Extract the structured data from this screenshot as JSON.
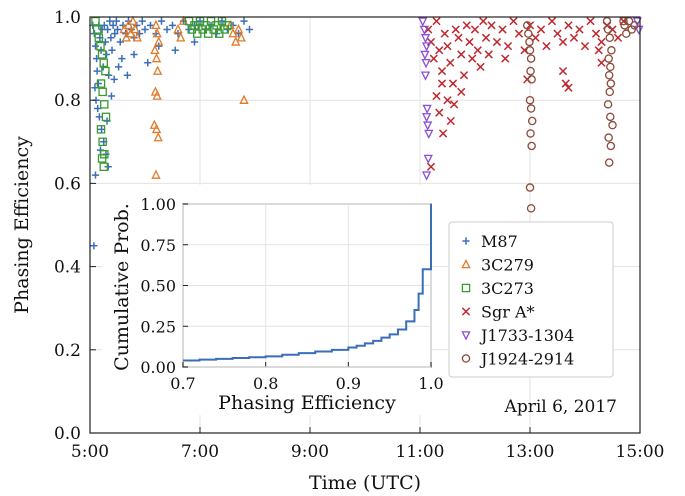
{
  "chart_data": {
    "type": "scatter",
    "xlabel": "Time (UTC)",
    "ylabel": "Phasing Efficiency",
    "xlim": [
      5.0,
      15.0
    ],
    "ylim": [
      0.0,
      1.0
    ],
    "xticks": [
      {
        "value": 5.0,
        "label": "5:00"
      },
      {
        "value": 7.0,
        "label": "7:00"
      },
      {
        "value": 9.0,
        "label": "9:00"
      },
      {
        "value": 11.0,
        "label": "11:00"
      },
      {
        "value": 13.0,
        "label": "13:00"
      },
      {
        "value": 15.0,
        "label": "15:00"
      }
    ],
    "yticks": [
      {
        "value": 0.0,
        "label": "0.0"
      },
      {
        "value": 0.2,
        "label": "0.2"
      },
      {
        "value": 0.4,
        "label": "0.4"
      },
      {
        "value": 0.6,
        "label": "0.6"
      },
      {
        "value": 0.8,
        "label": "0.8"
      },
      {
        "value": 1.0,
        "label": "1.0"
      }
    ],
    "grid": true,
    "legend_position": "right",
    "annotation": "April 6, 2017",
    "series": [
      {
        "name": "M87",
        "color": "#3a6fb8",
        "marker": "plus",
        "points": [
          [
            5.05,
            0.98
          ],
          [
            5.08,
            0.96
          ],
          [
            5.1,
            0.93
          ],
          [
            5.12,
            0.9
          ],
          [
            5.13,
            0.87
          ],
          [
            5.15,
            0.84
          ],
          [
            5.16,
            0.98
          ],
          [
            5.18,
            0.95
          ],
          [
            5.2,
            0.92
          ],
          [
            5.22,
            0.97
          ],
          [
            5.24,
            0.88
          ],
          [
            5.26,
            0.98
          ],
          [
            5.28,
            0.94
          ],
          [
            5.3,
            0.91
          ],
          [
            5.32,
            0.97
          ],
          [
            5.34,
            0.86
          ],
          [
            5.36,
            0.99
          ],
          [
            5.38,
            0.95
          ],
          [
            5.4,
            0.92
          ],
          [
            5.42,
            0.98
          ],
          [
            5.45,
            0.96
          ],
          [
            5.48,
            0.99
          ],
          [
            5.5,
            0.97
          ],
          [
            5.55,
            0.94
          ],
          [
            5.6,
            0.98
          ],
          [
            5.65,
            0.96
          ],
          [
            5.7,
            0.99
          ],
          [
            5.75,
            0.97
          ],
          [
            5.8,
            0.95
          ],
          [
            5.85,
            0.98
          ],
          [
            5.9,
            0.96
          ],
          [
            5.95,
            0.99
          ],
          [
            6.0,
            0.97
          ],
          [
            6.1,
            0.98
          ],
          [
            6.2,
            0.96
          ],
          [
            6.3,
            0.99
          ],
          [
            6.4,
            0.97
          ],
          [
            6.5,
            0.98
          ],
          [
            6.6,
            0.96
          ],
          [
            6.7,
            0.99
          ],
          [
            6.8,
            0.97
          ],
          [
            6.9,
            0.98
          ],
          [
            7.0,
            0.99
          ],
          [
            7.1,
            0.97
          ],
          [
            7.2,
            0.98
          ],
          [
            7.3,
            0.96
          ],
          [
            7.4,
            0.99
          ],
          [
            7.5,
            0.97
          ],
          [
            7.6,
            0.98
          ],
          [
            7.7,
            0.96
          ],
          [
            7.8,
            0.99
          ],
          [
            7.9,
            0.97
          ],
          [
            5.09,
            0.83
          ],
          [
            5.11,
            0.8
          ],
          [
            5.14,
            0.78
          ],
          [
            5.17,
            0.76
          ],
          [
            5.21,
            0.73
          ],
          [
            5.25,
            0.7
          ],
          [
            5.29,
            0.67
          ],
          [
            5.33,
            0.64
          ],
          [
            5.1,
            0.62
          ],
          [
            5.19,
            0.68
          ],
          [
            5.31,
            0.75
          ],
          [
            5.39,
            0.81
          ],
          [
            5.44,
            0.85
          ],
          [
            5.52,
            0.88
          ],
          [
            5.58,
            0.9
          ],
          [
            5.68,
            0.86
          ],
          [
            5.8,
            0.91
          ],
          [
            6.05,
            0.89
          ],
          [
            6.25,
            0.93
          ],
          [
            6.55,
            0.92
          ],
          [
            6.9,
            0.94
          ],
          [
            5.07,
            0.45
          ]
        ]
      },
      {
        "name": "3C279",
        "color": "#e07b2a",
        "marker": "triangle-up",
        "points": [
          [
            5.62,
            0.97
          ],
          [
            5.66,
            0.95
          ],
          [
            5.7,
            0.98
          ],
          [
            5.74,
            0.96
          ],
          [
            5.78,
            0.99
          ],
          [
            5.82,
            0.97
          ],
          [
            5.86,
            0.95
          ],
          [
            6.2,
            0.98
          ],
          [
            6.22,
            0.96
          ],
          [
            6.25,
            0.94
          ],
          [
            6.18,
            0.92
          ],
          [
            6.21,
            0.9
          ],
          [
            6.23,
            0.87
          ],
          [
            6.19,
            0.82
          ],
          [
            6.22,
            0.81
          ],
          [
            6.17,
            0.74
          ],
          [
            6.21,
            0.73
          ],
          [
            6.24,
            0.71
          ],
          [
            6.2,
            0.62
          ],
          [
            6.6,
            0.97
          ],
          [
            6.65,
            0.95
          ],
          [
            6.7,
            0.99
          ],
          [
            7.55,
            0.98
          ],
          [
            7.6,
            0.96
          ],
          [
            7.65,
            0.94
          ],
          [
            7.7,
            0.97
          ],
          [
            7.75,
            0.95
          ],
          [
            7.8,
            0.8
          ]
        ]
      },
      {
        "name": "3C273",
        "color": "#3a9a32",
        "marker": "square",
        "points": [
          [
            5.1,
            0.99
          ],
          [
            5.13,
            0.97
          ],
          [
            5.16,
            0.95
          ],
          [
            5.19,
            0.93
          ],
          [
            5.22,
            0.91
          ],
          [
            5.25,
            0.89
          ],
          [
            5.28,
            0.87
          ],
          [
            5.2,
            0.84
          ],
          [
            5.23,
            0.82
          ],
          [
            5.26,
            0.79
          ],
          [
            5.29,
            0.76
          ],
          [
            5.2,
            0.73
          ],
          [
            5.23,
            0.7
          ],
          [
            5.26,
            0.67
          ],
          [
            5.22,
            0.66
          ],
          [
            5.25,
            0.64
          ],
          [
            6.8,
            0.99
          ],
          [
            6.85,
            0.97
          ],
          [
            6.9,
            0.98
          ],
          [
            6.95,
            0.96
          ],
          [
            7.0,
            0.99
          ],
          [
            7.05,
            0.97
          ],
          [
            7.1,
            0.98
          ],
          [
            7.15,
            0.96
          ],
          [
            7.2,
            0.99
          ],
          [
            7.25,
            0.97
          ],
          [
            7.3,
            0.98
          ],
          [
            7.35,
            0.96
          ],
          [
            7.4,
            0.99
          ],
          [
            7.45,
            0.97
          ],
          [
            7.5,
            0.98
          ]
        ]
      },
      {
        "name": "Sgr A*",
        "color": "#c0282e",
        "marker": "cross",
        "points": [
          [
            11.15,
            0.97
          ],
          [
            11.2,
            0.94
          ],
          [
            11.25,
            0.9
          ],
          [
            11.3,
            0.99
          ],
          [
            11.35,
            0.92
          ],
          [
            11.4,
            0.87
          ],
          [
            11.45,
            0.96
          ],
          [
            11.5,
            0.93
          ],
          [
            11.55,
            0.89
          ],
          [
            11.6,
            0.84
          ],
          [
            11.65,
            0.97
          ],
          [
            11.7,
            0.95
          ],
          [
            11.75,
            0.91
          ],
          [
            11.8,
            0.86
          ],
          [
            11.85,
            0.98
          ],
          [
            11.9,
            0.94
          ],
          [
            11.95,
            0.9
          ],
          [
            12.0,
            0.97
          ],
          [
            12.05,
            0.92
          ],
          [
            12.1,
            0.88
          ],
          [
            12.15,
            0.99
          ],
          [
            12.2,
            0.95
          ],
          [
            12.25,
            0.91
          ],
          [
            12.3,
            0.98
          ],
          [
            12.4,
            0.94
          ],
          [
            12.5,
            0.97
          ],
          [
            12.6,
            0.93
          ],
          [
            12.7,
            0.99
          ],
          [
            12.8,
            0.96
          ],
          [
            12.9,
            0.92
          ],
          [
            13.0,
            0.98
          ],
          [
            13.1,
            0.95
          ],
          [
            13.2,
            0.97
          ],
          [
            13.3,
            0.93
          ],
          [
            13.4,
            0.99
          ],
          [
            13.5,
            0.96
          ],
          [
            13.6,
            0.94
          ],
          [
            13.7,
            0.98
          ],
          [
            13.8,
            0.95
          ],
          [
            13.9,
            0.97
          ],
          [
            14.0,
            0.93
          ],
          [
            14.1,
            0.99
          ],
          [
            14.2,
            0.96
          ],
          [
            14.3,
            0.94
          ],
          [
            14.4,
            0.98
          ],
          [
            14.5,
            0.97
          ],
          [
            14.6,
            0.95
          ],
          [
            14.7,
            0.99
          ],
          [
            11.3,
            0.81
          ],
          [
            11.35,
            0.77
          ],
          [
            11.42,
            0.72
          ],
          [
            11.5,
            0.8
          ],
          [
            11.56,
            0.75
          ],
          [
            11.62,
            0.79
          ],
          [
            11.2,
            0.64
          ],
          [
            11.4,
            0.84
          ],
          [
            11.75,
            0.82
          ],
          [
            12.55,
            0.9
          ],
          [
            12.95,
            0.85
          ],
          [
            13.6,
            0.87
          ],
          [
            13.65,
            0.84
          ],
          [
            13.7,
            0.83
          ],
          [
            14.25,
            0.92
          ],
          [
            14.3,
            0.89
          ]
        ]
      },
      {
        "name": "J1733-1304",
        "color": "#8b4ed6",
        "marker": "triangle-down",
        "points": [
          [
            11.05,
            0.99
          ],
          [
            11.08,
            0.97
          ],
          [
            11.1,
            0.95
          ],
          [
            11.12,
            0.93
          ],
          [
            11.09,
            0.91
          ],
          [
            11.11,
            0.89
          ],
          [
            11.1,
            0.86
          ],
          [
            11.13,
            0.78
          ],
          [
            11.12,
            0.76
          ],
          [
            11.14,
            0.74
          ],
          [
            11.16,
            0.72
          ],
          [
            11.15,
            0.66
          ],
          [
            11.12,
            0.62
          ],
          [
            14.95,
            0.99
          ],
          [
            14.98,
            0.97
          ]
        ]
      },
      {
        "name": "J1924-2914",
        "color": "#8a4a3a",
        "marker": "circle",
        "points": [
          [
            12.95,
            0.98
          ],
          [
            12.97,
            0.96
          ],
          [
            12.99,
            0.94
          ],
          [
            13.0,
            0.92
          ],
          [
            13.02,
            0.9
          ],
          [
            13.01,
            0.87
          ],
          [
            13.03,
            0.85
          ],
          [
            13.0,
            0.8
          ],
          [
            13.02,
            0.78
          ],
          [
            13.04,
            0.75
          ],
          [
            13.01,
            0.72
          ],
          [
            13.03,
            0.69
          ],
          [
            13.0,
            0.59
          ],
          [
            13.02,
            0.54
          ],
          [
            14.4,
            0.99
          ],
          [
            14.42,
            0.97
          ],
          [
            14.45,
            0.95
          ],
          [
            14.48,
            0.92
          ],
          [
            14.43,
            0.9
          ],
          [
            14.46,
            0.88
          ],
          [
            14.44,
            0.86
          ],
          [
            14.47,
            0.84
          ],
          [
            14.45,
            0.82
          ],
          [
            14.42,
            0.79
          ],
          [
            14.46,
            0.76
          ],
          [
            14.5,
            0.74
          ],
          [
            14.43,
            0.71
          ],
          [
            14.47,
            0.69
          ],
          [
            14.44,
            0.65
          ],
          [
            14.7,
            0.99
          ],
          [
            14.72,
            0.98
          ],
          [
            14.75,
            0.96
          ],
          [
            14.8,
            0.99
          ],
          [
            14.85,
            0.97
          ],
          [
            14.9,
            0.98
          ]
        ]
      }
    ],
    "inset": {
      "type": "step",
      "xlabel": "Phasing Efficiency",
      "ylabel": "Cumulative Prob.",
      "xlim": [
        0.7,
        1.0
      ],
      "ylim": [
        0.0,
        1.0
      ],
      "xticks": [
        {
          "value": 0.7,
          "label": "0.7"
        },
        {
          "value": 0.8,
          "label": "0.8"
        },
        {
          "value": 0.9,
          "label": "0.9"
        },
        {
          "value": 1.0,
          "label": "1.0"
        }
      ],
      "yticks": [
        {
          "value": 0.0,
          "label": "0.00"
        },
        {
          "value": 0.25,
          "label": "0.25"
        },
        {
          "value": 0.5,
          "label": "0.50"
        },
        {
          "value": 0.75,
          "label": "0.75"
        },
        {
          "value": 1.0,
          "label": "1.00"
        }
      ],
      "color": "#3a6fb8",
      "x": [
        0.7,
        0.72,
        0.74,
        0.76,
        0.78,
        0.8,
        0.82,
        0.84,
        0.86,
        0.88,
        0.9,
        0.91,
        0.92,
        0.93,
        0.94,
        0.95,
        0.96,
        0.97,
        0.98,
        0.985,
        0.99,
        1.0
      ],
      "y": [
        0.04,
        0.045,
        0.05,
        0.055,
        0.06,
        0.065,
        0.075,
        0.085,
        0.095,
        0.105,
        0.12,
        0.13,
        0.145,
        0.16,
        0.18,
        0.2,
        0.23,
        0.28,
        0.35,
        0.45,
        0.6,
        1.0
      ]
    }
  }
}
